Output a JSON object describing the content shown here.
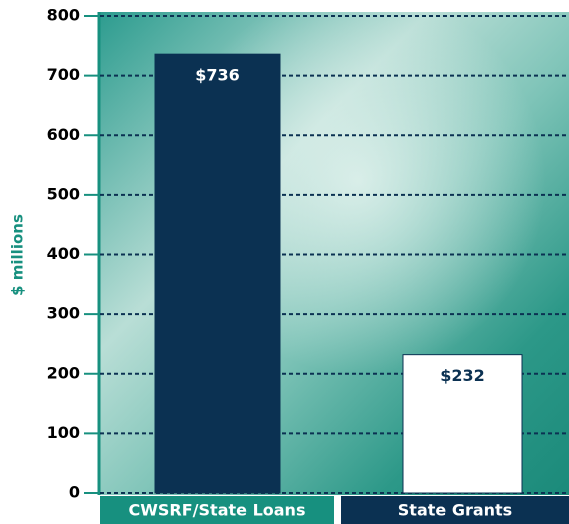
{
  "chart_data": {
    "type": "bar",
    "y_label": "$ millions",
    "categories": [
      "CWSRF/State Loans",
      "State Grants"
    ],
    "values": [
      736,
      232
    ],
    "value_labels": [
      "$736",
      "$232"
    ],
    "colors": [
      "#0b3152",
      "#ffffff"
    ],
    "label_colors": [
      "#17907f",
      "#0b3152"
    ],
    "ylim": [
      0,
      800
    ],
    "yticks": [
      0,
      100,
      200,
      300,
      400,
      500,
      600,
      700,
      800
    ],
    "grid": true
  }
}
